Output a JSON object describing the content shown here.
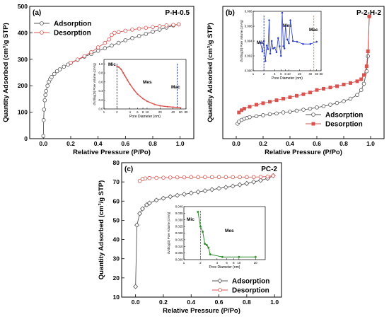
{
  "chart_data": [
    {
      "panel": "(a)",
      "type": "line",
      "title": "P-H-0.5",
      "xlabel": "Relative Pressure (P/Po)",
      "ylabel": "Quantity Adsorbed (cm³/g STP)",
      "xlim": [
        -0.1,
        1.1
      ],
      "ylim": [
        0,
        500
      ],
      "xticks": [
        "0.0",
        "0.2",
        "0.4",
        "0.6",
        "0.8",
        "1.0"
      ],
      "yticks": [
        "0",
        "100",
        "200",
        "300",
        "400",
        "500"
      ],
      "legend": "top-left",
      "grid": false,
      "series": [
        {
          "name": "Adsorption",
          "color": "#555555",
          "marker": "circle-open",
          "x": [
            0.0,
            0.002,
            0.005,
            0.01,
            0.015,
            0.02,
            0.03,
            0.04,
            0.05,
            0.06,
            0.08,
            0.1,
            0.12,
            0.15,
            0.18,
            0.2,
            0.25,
            0.3,
            0.35,
            0.4,
            0.45,
            0.5,
            0.55,
            0.6,
            0.65,
            0.7,
            0.75,
            0.8,
            0.85,
            0.9,
            0.95,
            0.99
          ],
          "y": [
            10,
            70,
            110,
            145,
            165,
            180,
            200,
            215,
            225,
            233,
            245,
            255,
            262,
            272,
            280,
            286,
            298,
            310,
            320,
            332,
            342,
            352,
            362,
            372,
            380,
            388,
            396,
            404,
            412,
            420,
            428,
            432
          ]
        },
        {
          "name": "Desorption",
          "color": "#d9534f",
          "marker": "circle-open",
          "x": [
            0.99,
            0.95,
            0.9,
            0.85,
            0.8,
            0.75,
            0.7,
            0.65,
            0.6,
            0.55,
            0.52,
            0.5,
            0.48,
            0.45,
            0.4,
            0.35,
            0.3,
            0.25,
            0.2
          ],
          "y": [
            432,
            430,
            428,
            425,
            422,
            419,
            416,
            412,
            408,
            403,
            400,
            392,
            375,
            362,
            345,
            327,
            312,
            299,
            287
          ]
        }
      ],
      "inset": {
        "type": "line",
        "xlabel": "Pore Diameter (nm)",
        "ylabel": "dV/dlog(D) Pore Volume (cm³/g)",
        "xscale": "log",
        "xlim": [
          1,
          80
        ],
        "ylim": [
          0,
          1.1
        ],
        "xticks": [
          "1",
          "2",
          "4",
          "6",
          "8",
          "10",
          "20",
          "40",
          "60",
          "80"
        ],
        "yticks": [
          "0.0",
          "0.2",
          "0.4",
          "0.6",
          "0.8",
          "1.0"
        ],
        "annotations": [
          "Mic",
          "Mes",
          "Mac"
        ],
        "dividers": [
          2,
          50
        ],
        "series": [
          {
            "color": "#d9534f",
            "x": [
              2,
              2.2,
              2.5,
              2.8,
              3,
              3.5,
              4,
              5,
              6,
              8,
              10,
              15,
              20,
              30,
              40,
              50,
              60
            ],
            "y": [
              0.95,
              0.93,
              0.88,
              0.8,
              0.75,
              0.64,
              0.55,
              0.42,
              0.33,
              0.23,
              0.17,
              0.1,
              0.07,
              0.05,
              0.04,
              0.03,
              0.025
            ]
          }
        ]
      }
    },
    {
      "panel": "(b)",
      "type": "line",
      "title": "P-2-H-2",
      "xlabel": "Relative Pressure (P/Po)",
      "ylabel": "Quantity Adsorbed (cm³/g STP)",
      "xlim": [
        -0.1,
        1.1
      ],
      "xticks": [
        "0.0",
        "0.2",
        "0.4",
        "0.6",
        "0.8",
        "1.0"
      ],
      "yticks": [],
      "legend": "bottom-right",
      "grid": false,
      "series": [
        {
          "name": "Adsorption",
          "color": "#555555",
          "marker": "circle-open",
          "x": [
            0.01,
            0.02,
            0.04,
            0.06,
            0.08,
            0.1,
            0.15,
            0.2,
            0.25,
            0.3,
            0.35,
            0.4,
            0.45,
            0.5,
            0.55,
            0.6,
            0.65,
            0.7,
            0.75,
            0.8,
            0.85,
            0.9,
            0.93,
            0.95,
            0.97,
            0.98,
            0.99
          ],
          "y": [
            0.6,
            0.68,
            0.75,
            0.8,
            0.83,
            0.86,
            0.9,
            0.94,
            0.98,
            1.01,
            1.05,
            1.08,
            1.12,
            1.16,
            1.2,
            1.25,
            1.3,
            1.36,
            1.43,
            1.5,
            1.6,
            1.75,
            1.95,
            2.2,
            2.7,
            3.3,
            4.9
          ]
        },
        {
          "name": "Desorption",
          "color": "#d9534f",
          "marker": "square-filled",
          "x": [
            0.99,
            0.98,
            0.97,
            0.95,
            0.93,
            0.9,
            0.85,
            0.8,
            0.75,
            0.7,
            0.65,
            0.6,
            0.55,
            0.5,
            0.45,
            0.4,
            0.35,
            0.3,
            0.25,
            0.2,
            0.15,
            0.1,
            0.06,
            0.04,
            0.02
          ],
          "y": [
            4.9,
            3.5,
            2.9,
            2.55,
            2.38,
            2.3,
            2.23,
            2.17,
            2.1,
            2.05,
            2.0,
            1.95,
            1.85,
            1.78,
            1.72,
            1.66,
            1.6,
            1.54,
            1.48,
            1.42,
            1.36,
            1.28,
            1.2,
            1.14,
            1.05
          ]
        }
      ],
      "inset": {
        "type": "line",
        "xlabel": "Pore Diameter (nm)",
        "ylabel": "dV/dlog(D) Pore Volume (cm³/g)",
        "xscale": "log",
        "xlim": [
          1,
          80
        ],
        "ylim": [
          0,
          0.008
        ],
        "xticks": [
          "1",
          "2",
          "4",
          "6",
          "8",
          "10",
          "20",
          "40",
          "60",
          "80"
        ],
        "yticks": [
          "0.000",
          "0.002",
          "0.004",
          "0.006",
          "0.008"
        ],
        "annotations": [
          "Mic",
          "Mes",
          "Mac"
        ],
        "dividers": [
          2,
          50
        ],
        "series": [
          {
            "color": "#2a3cc4",
            "x": [
              1.6,
              1.8,
              2.0,
              2.2,
              2.4,
              2.6,
              2.8,
              3.0,
              3.3,
              3.6,
              4.0,
              4.5,
              5.0,
              5.5,
              6.0,
              6.5,
              7.0,
              7.5,
              8.0,
              9.0,
              10.0,
              11.0,
              13.0,
              17.0,
              25.0,
              40.0,
              60.0
            ],
            "y": [
              0.0038,
              0.0026,
              0.004,
              0.0013,
              0.0034,
              0.0029,
              0.0068,
              0.0023,
              0.004,
              0.003,
              0.0031,
              0.0025,
              0.0044,
              0.0033,
              0.002,
              0.0078,
              0.0033,
              0.003,
              0.006,
              0.0042,
              0.0037,
              0.0068,
              0.004,
              0.0039,
              0.0036,
              0.0036,
              0.0039
            ]
          }
        ]
      }
    },
    {
      "panel": "(c)",
      "type": "line",
      "title": "PC-2",
      "xlabel": "Relative Pressure (P/Po)",
      "ylabel": "Quantity Adsorbed (cm³/g STP)",
      "xlim": [
        -0.1,
        1.05
      ],
      "ylim": [
        10,
        80
      ],
      "xticks": [
        "0.0",
        "0.2",
        "0.4",
        "0.6",
        "0.8",
        "1.0"
      ],
      "yticks": [
        "10",
        "20",
        "30",
        "40",
        "50",
        "60",
        "70",
        "80"
      ],
      "legend": "bottom-right",
      "grid": false,
      "series": [
        {
          "name": "Adsorption",
          "color": "#555555",
          "marker": "diamond-open",
          "x": [
            0.0,
            0.01,
            0.03,
            0.05,
            0.08,
            0.1,
            0.15,
            0.2,
            0.25,
            0.3,
            0.35,
            0.4,
            0.45,
            0.5,
            0.55,
            0.6,
            0.65,
            0.7,
            0.75,
            0.8,
            0.85,
            0.9,
            0.95,
            0.99
          ],
          "y": [
            15.5,
            47.5,
            53.5,
            56,
            58,
            59,
            60.5,
            61.5,
            62.3,
            63,
            63.6,
            64.2,
            64.8,
            65.4,
            66,
            66.6,
            67.2,
            67.8,
            68.5,
            69.2,
            70,
            70.8,
            71.8,
            73.2
          ]
        },
        {
          "name": "Desorption",
          "color": "#d9534f",
          "marker": "circle-open",
          "x": [
            0.99,
            0.95,
            0.9,
            0.85,
            0.8,
            0.75,
            0.7,
            0.65,
            0.6,
            0.55,
            0.5,
            0.45,
            0.4,
            0.35,
            0.3,
            0.25,
            0.2,
            0.15,
            0.1,
            0.07,
            0.05,
            0.03
          ],
          "y": [
            73.2,
            72.8,
            72.6,
            72.5,
            72.5,
            72.5,
            72.5,
            72.5,
            72.5,
            72.5,
            72.5,
            72.5,
            72.5,
            72.4,
            72.4,
            72.3,
            72.2,
            72.1,
            72.0,
            71.8,
            71.5,
            70.5
          ]
        }
      ],
      "inset": {
        "type": "line",
        "xlabel": "Pore Diameter (nm)",
        "ylabel": "dV/dlog(D) Pore Volume (cm³/g)",
        "xscale": "log",
        "xlim": [
          1,
          30
        ],
        "ylim": [
          0,
          0.04
        ],
        "xticks": [
          "1",
          "2",
          "4",
          "6",
          "8",
          "10",
          "20"
        ],
        "yticks": [
          "0.000",
          "0.005",
          "0.010",
          "0.015",
          "0.020",
          "0.025",
          "0.030",
          "0.035",
          "0.040"
        ],
        "annotations": [
          "Mic",
          "Mes"
        ],
        "dividers": [
          2
        ],
        "series": [
          {
            "color": "#2e8b2e",
            "x": [
              1.8,
              2.0,
              2.2,
              2.4,
              2.6,
              2.8,
              3.0,
              5.0,
              10.0,
              20.0
            ],
            "y": [
              0.036,
              0.025,
              0.021,
              0.012,
              0.011,
              0.009,
              0.004,
              0.002,
              0.002,
              0.002
            ]
          }
        ]
      }
    }
  ]
}
